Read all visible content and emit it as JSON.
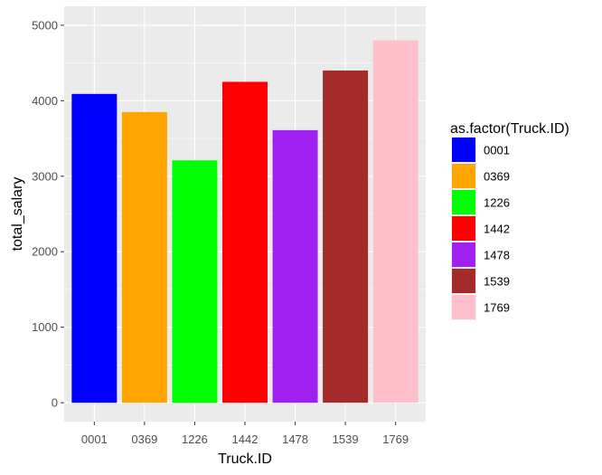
{
  "chart_data": {
    "type": "bar",
    "xlabel": "Truck.ID",
    "ylabel": "total_salary",
    "categories": [
      "0001",
      "0369",
      "1226",
      "1442",
      "1478",
      "1539",
      "1769"
    ],
    "values": [
      4090,
      3850,
      3210,
      4250,
      3610,
      4400,
      4800
    ],
    "colors": [
      "#0000ff",
      "#ffa500",
      "#00ff00",
      "#ff0000",
      "#a020f0",
      "#a52a2a",
      "#ffc0cb"
    ],
    "ylim": [
      0,
      5000
    ],
    "yticks": [
      0,
      1000,
      2000,
      3000,
      4000,
      5000
    ],
    "grid": true,
    "panel_background": "#ebebeb",
    "legend": {
      "title": "as.factor(Truck.ID)",
      "position": "right",
      "entries": [
        "0001",
        "0369",
        "1226",
        "1442",
        "1478",
        "1539",
        "1769"
      ]
    }
  }
}
